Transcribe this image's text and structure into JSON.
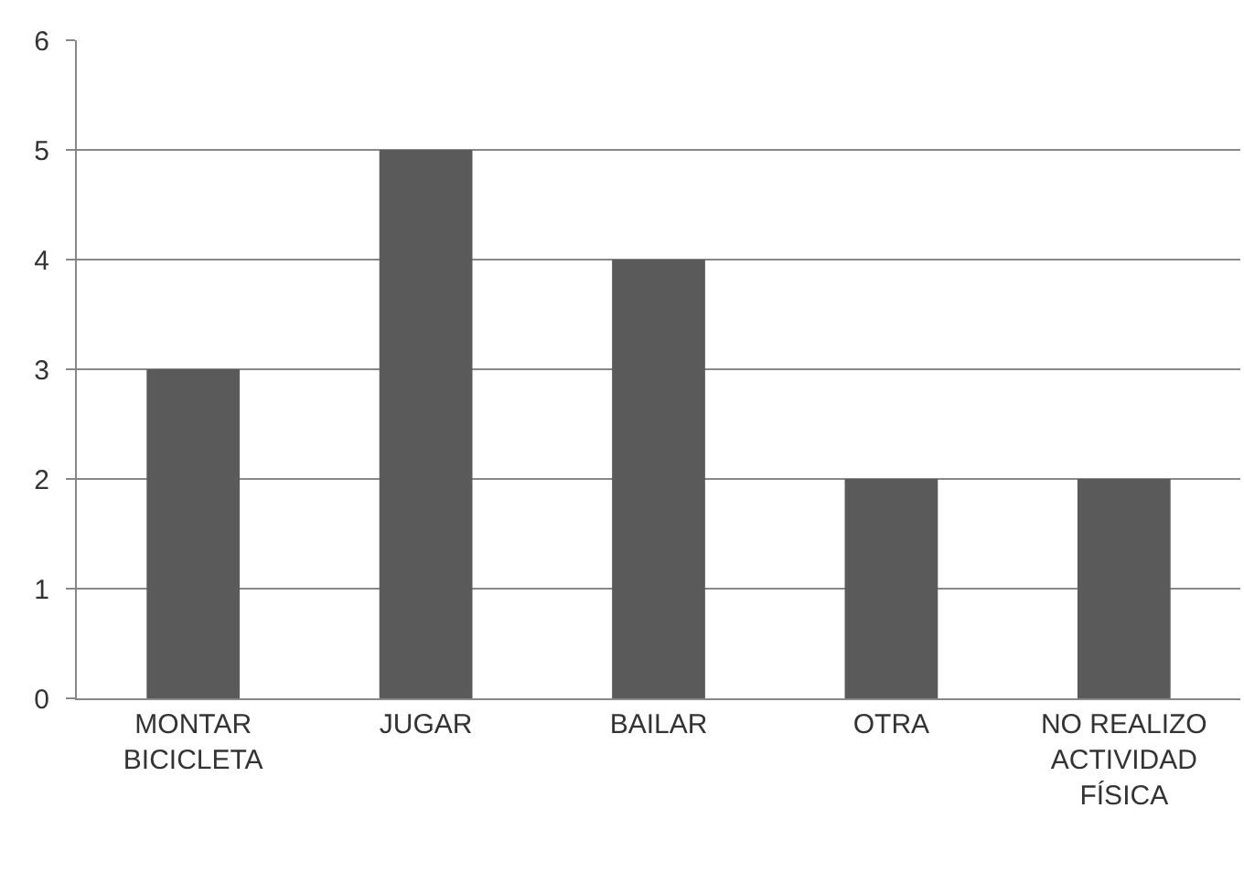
{
  "chart_data": {
    "type": "bar",
    "categories": [
      "MONTAR BICICLETA",
      "JUGAR",
      "BAILAR",
      "OTRA",
      "NO REALIZO ACTIVIDAD FÍSICA"
    ],
    "values": [
      3,
      5,
      4,
      2,
      2
    ],
    "color": "#5a5a5a",
    "ylim": [
      0,
      6
    ],
    "yticks": [
      0,
      1,
      2,
      3,
      4,
      5,
      6
    ],
    "grid": "y"
  }
}
